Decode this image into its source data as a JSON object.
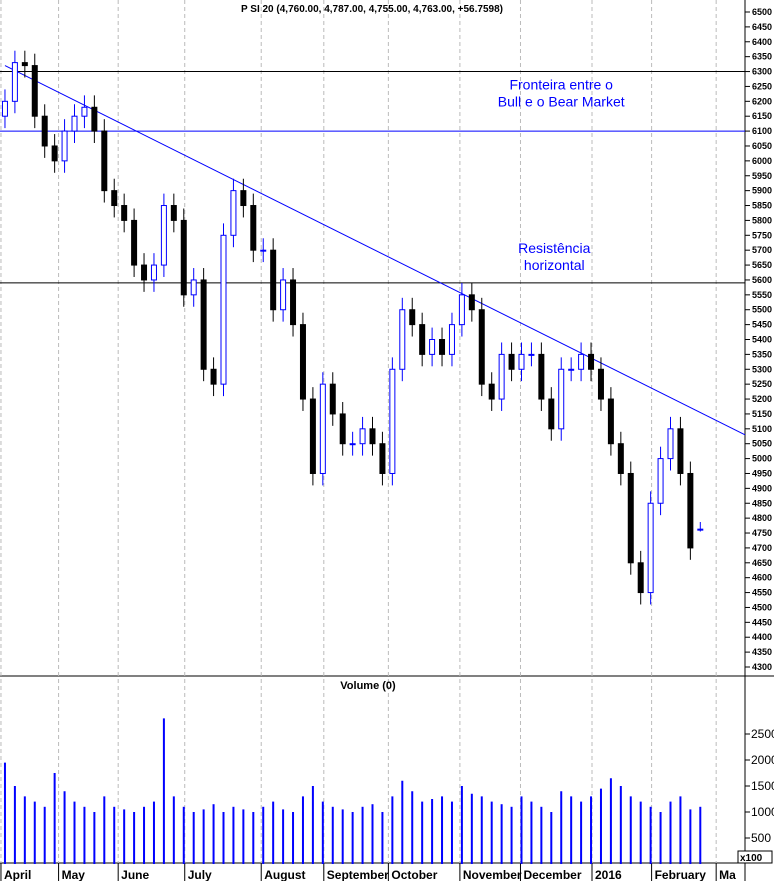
{
  "chart_data": {
    "type": "candlestick",
    "title": "P SI 20 (4,760.00, 4,787.00, 4,755.00, 4,763.00, +56.7598)",
    "volume_title": "Volume (0)",
    "volume_unit": "x100",
    "price_ylim": [
      4300,
      6500
    ],
    "price_ticks": [
      4300,
      4350,
      4400,
      4450,
      4500,
      4550,
      4600,
      4650,
      4700,
      4750,
      4800,
      4850,
      4900,
      4950,
      5000,
      5050,
      5100,
      5150,
      5200,
      5250,
      5300,
      5350,
      5400,
      5450,
      5500,
      5550,
      5600,
      5650,
      5700,
      5750,
      5800,
      5850,
      5900,
      5950,
      6000,
      6050,
      6100,
      6150,
      6200,
      6250,
      6300,
      6350,
      6400,
      6450,
      6500
    ],
    "volume_ylim": [
      0,
      2800
    ],
    "volume_ticks": [
      500,
      1000,
      1500,
      2000,
      2500
    ],
    "months": [
      {
        "label": "April",
        "pos": 0
      },
      {
        "label": "May",
        "pos": 5.8
      },
      {
        "label": "June",
        "pos": 11.8
      },
      {
        "label": "July",
        "pos": 18.5
      },
      {
        "label": "August",
        "pos": 26.2
      },
      {
        "label": "September",
        "pos": 32.5
      },
      {
        "label": "October",
        "pos": 39
      },
      {
        "label": "November",
        "pos": 46.2
      },
      {
        "label": "December",
        "pos": 52.3
      },
      {
        "label": "2016",
        "pos": 59.5
      },
      {
        "label": "February",
        "pos": 65.5
      },
      {
        "label": "Ma",
        "pos": 72
      }
    ],
    "closes": [
      6200,
      6330,
      6320,
      6150,
      6050,
      6000,
      6100,
      6150,
      6180,
      6100,
      5900,
      5850,
      5800,
      5650,
      5600,
      5650,
      5850,
      5800,
      5550,
      5600,
      5300,
      5250,
      5750,
      5900,
      5850,
      5700,
      5700,
      5500,
      5600,
      5450,
      5200,
      4950,
      5250,
      5150,
      5050,
      5050,
      5100,
      5050,
      4950,
      5300,
      5500,
      5450,
      5350,
      5400,
      5350,
      5450,
      5550,
      5500,
      5250,
      5200,
      5350,
      5300,
      5350,
      5350,
      5200,
      5100,
      5300,
      5300,
      5350,
      5300,
      5200,
      5050,
      4950,
      4650,
      4550,
      4850,
      5000,
      5100,
      4950,
      4700,
      4763
    ],
    "first_open": 6150,
    "last_candle": {
      "open": 4760,
      "high": 4787,
      "low": 4755,
      "close": 4763
    },
    "volumes": [
      1950,
      1500,
      1300,
      1200,
      1100,
      1750,
      1400,
      1200,
      1100,
      1000,
      1300,
      1100,
      1050,
      1000,
      1100,
      1200,
      2800,
      1300,
      1100,
      1000,
      1050,
      1150,
      1000,
      1100,
      1050,
      1000,
      1100,
      1200,
      1050,
      1000,
      1300,
      1500,
      1200,
      1100,
      1050,
      1000,
      1100,
      1150,
      1000,
      1300,
      1600,
      1400,
      1200,
      1250,
      1300,
      1200,
      1500,
      1350,
      1300,
      1200,
      1150,
      1100,
      1300,
      1200,
      1100,
      1000,
      1400,
      1300,
      1200,
      1300,
      1450,
      1650,
      1500,
      1300,
      1200,
      1100,
      1000,
      1200,
      1300,
      1050,
      1100
    ],
    "lines": [
      {
        "type": "horizontal",
        "value": 6300,
        "color": "#000000"
      },
      {
        "type": "horizontal",
        "value": 6100,
        "color": "#0000ff"
      },
      {
        "type": "horizontal",
        "value": 5590,
        "color": "#000000"
      },
      {
        "type": "trend",
        "from": [
          0,
          6320
        ],
        "to": [
          74.5,
          5080
        ],
        "color": "#0000ff"
      }
    ],
    "annotations": [
      {
        "lines": [
          "Fronteira entre o",
          "Bull e o Bear Market"
        ],
        "pos": 56,
        "price": 6240
      },
      {
        "lines": [
          "Resistência",
          "horizontal"
        ],
        "pos": 55.3,
        "price": 5690
      }
    ],
    "colors": {
      "up": "#0000ff",
      "down": "#000000",
      "volume": "#0000ff",
      "annotation": "#0000ff"
    }
  }
}
